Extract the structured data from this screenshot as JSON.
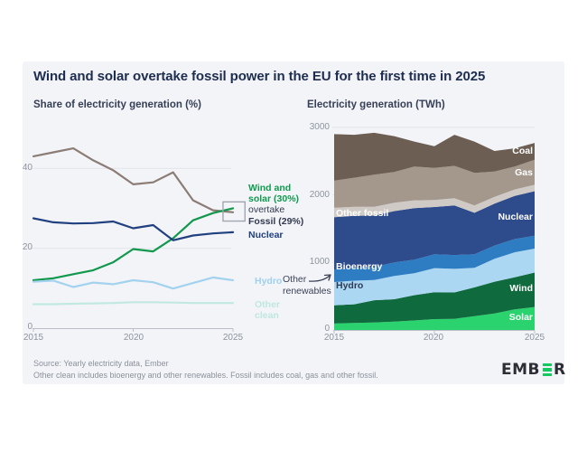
{
  "title": "Wind and solar overtake fossil power in the EU for the first time in 2025",
  "chart_data": [
    {
      "type": "line",
      "subtitle": "Share of electricity generation (%)",
      "xlabel": "",
      "ylabel": "Share of electricity generation (%)",
      "ylim": [
        0,
        48
      ],
      "grid": "horizontal",
      "x_ticks": [
        "2015",
        "2020",
        "2025"
      ],
      "y_ticks": [
        "0",
        "20",
        "40"
      ],
      "years": [
        2015,
        2016,
        2017,
        2018,
        2019,
        2020,
        2021,
        2022,
        2023,
        2024,
        2025
      ],
      "series": [
        {
          "name": "Fossil",
          "color": "#8b7d75",
          "values": [
            43,
            44,
            45,
            42,
            39.5,
            36,
            36.5,
            39,
            32,
            29.5,
            29
          ]
        },
        {
          "name": "Wind and solar",
          "color": "#12984d",
          "values": [
            12,
            12.5,
            13.5,
            14.5,
            16.5,
            19.8,
            19.2,
            22.5,
            27,
            28.8,
            30
          ]
        },
        {
          "name": "Nuclear",
          "color": "#21407f",
          "values": [
            27.5,
            26.5,
            26.2,
            26.3,
            26.7,
            25,
            25.8,
            22,
            23.2,
            23.7,
            24
          ]
        },
        {
          "name": "Hydro",
          "color": "#a3d2ee",
          "values": [
            11.6,
            11.9,
            10.3,
            11.4,
            11,
            12,
            11.5,
            9.9,
            11.3,
            12.7,
            12
          ]
        },
        {
          "name": "Other clean",
          "color": "#c2e9e1",
          "values": [
            6,
            6,
            6.1,
            6.2,
            6.3,
            6.5,
            6.5,
            6.4,
            6.3,
            6.3,
            6.3
          ]
        }
      ],
      "labels": {
        "wind_solar": "Wind and\nsolar (30%)",
        "overtake": "overtake",
        "fossil": "Fossil (29%)",
        "nuclear": "Nuclear",
        "hydro": "Hydro",
        "other_clean": "Other\nclean"
      },
      "highlight_box": {
        "year_from": 2024.5,
        "year_to": 2025.6,
        "val_from": 26.8,
        "val_to": 31.6
      }
    },
    {
      "type": "area",
      "subtitle": "Electricity generation (TWh)",
      "xlabel": "",
      "ylabel": "Electricity generation (TWh)",
      "ylim": [
        0,
        3000
      ],
      "grid": "horizontal",
      "x_ticks": [
        "2015",
        "2020",
        "2025"
      ],
      "y_ticks": [
        "0",
        "1000",
        "2000",
        "3000"
      ],
      "years": [
        2015,
        2016,
        2017,
        2018,
        2019,
        2020,
        2021,
        2022,
        2023,
        2024,
        2025
      ],
      "layers": [
        {
          "label": "Solar",
          "color": "#2bd36f",
          "values": [
            95,
            105,
            110,
            125,
            140,
            160,
            165,
            205,
            245,
            305,
            340
          ]
        },
        {
          "label": "Wind",
          "color": "#0f6b3e",
          "values": [
            270,
            275,
            330,
            330,
            375,
            400,
            390,
            425,
            470,
            475,
            510
          ]
        },
        {
          "label": "Hydro",
          "color": "#abd7f3",
          "values": [
            345,
            350,
            300,
            345,
            325,
            355,
            350,
            290,
            340,
            370,
            355
          ]
        },
        {
          "label": "Bioenergy",
          "color": "#2e7cc1",
          "values": [
            185,
            190,
            195,
            200,
            200,
            205,
            205,
            200,
            195,
            195,
            190
          ]
        },
        {
          "label": "Nuclear",
          "color": "#2e4c8c",
          "values": [
            775,
            770,
            760,
            760,
            765,
            700,
            735,
            615,
            620,
            640,
            660
          ]
        },
        {
          "label": "Other fossil",
          "color": "#cfcac5",
          "values": [
            140,
            135,
            130,
            125,
            115,
            105,
            105,
            110,
            100,
            95,
            95
          ]
        },
        {
          "label": "Gas",
          "color": "#a4978c",
          "values": [
            400,
            430,
            475,
            455,
            500,
            475,
            480,
            480,
            375,
            340,
            370
          ]
        },
        {
          "label": "Coal",
          "color": "#6d5e54",
          "values": [
            690,
            635,
            620,
            530,
            370,
            320,
            460,
            465,
            305,
            270,
            250
          ]
        }
      ],
      "labels": {
        "other_renewables": "Other\nrenewables"
      }
    }
  ],
  "footer": {
    "source": "Source: Yearly electricity data, Ember",
    "note": "Other clean includes bioenergy and other renewables. Fossil includes coal, gas and other fossil."
  },
  "logo": {
    "text_left": "EMB",
    "text_right": "R",
    "green": "#14c95f"
  }
}
